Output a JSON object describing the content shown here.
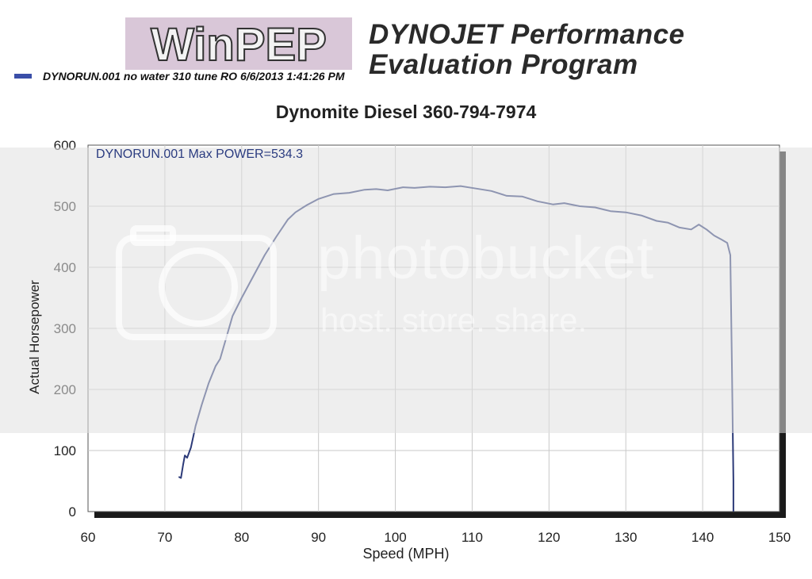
{
  "header": {
    "logo_text": "WinPEP",
    "program_line1": "DYNOJET Performance",
    "program_line2": "Evaluation Program",
    "run_legend": "DYNORUN.001  no water 310 tune RO  6/6/2013 1:41:26 PM"
  },
  "watermark": {
    "brand": "photobucket",
    "tagline": "host. store. share."
  },
  "colors": {
    "series": "#2c3a78",
    "legend_swatch": "#3a4ea8",
    "watermark_band": "#e3e3e3",
    "annotation": "#2b3c80"
  },
  "chart_data": {
    "type": "line",
    "title": "Dynomite Diesel 360-794-7974",
    "annotation": "DYNORUN.001  Max POWER=534.3",
    "xlabel": "Speed (MPH)",
    "ylabel": "Actual Horsepower",
    "xlim": [
      60,
      150
    ],
    "ylim": [
      0,
      600
    ],
    "xticks": [
      "60",
      "70",
      "80",
      "90",
      "100",
      "110",
      "120",
      "130",
      "140",
      "150"
    ],
    "yticks": [
      "0",
      "100",
      "200",
      "300",
      "400",
      "500",
      "600"
    ],
    "grid": true,
    "series": [
      {
        "name": "DYNORUN.001",
        "x": [
          71.8,
          72.1,
          72.4,
          72.6,
          72.9,
          73.4,
          74.0,
          74.8,
          75.7,
          76.6,
          77.2,
          78.0,
          78.8,
          80.0,
          81.5,
          83.0,
          84.5,
          86.0,
          87.0,
          88.5,
          90.0,
          92.0,
          94.0,
          96.0,
          97.5,
          99.0,
          101.0,
          102.5,
          104.5,
          106.5,
          108.5,
          110.5,
          112.5,
          114.5,
          116.5,
          118.5,
          120.5,
          122.0,
          124.0,
          126.0,
          128.0,
          130.0,
          132.0,
          134.0,
          135.5,
          137.0,
          138.5,
          139.5,
          140.5,
          141.5,
          142.5,
          143.2,
          143.6,
          143.8,
          144.0,
          144.0
        ],
        "y": [
          57,
          55,
          78,
          92,
          88,
          105,
          140,
          175,
          210,
          238,
          250,
          285,
          320,
          350,
          385,
          420,
          450,
          478,
          490,
          502,
          512,
          520,
          522,
          527,
          528,
          526,
          531,
          530,
          532,
          531,
          533,
          529,
          525,
          517,
          516,
          508,
          503,
          505,
          500,
          498,
          492,
          490,
          485,
          476,
          473,
          465,
          462,
          470,
          462,
          452,
          445,
          440,
          420,
          250,
          50,
          0
        ]
      }
    ]
  }
}
